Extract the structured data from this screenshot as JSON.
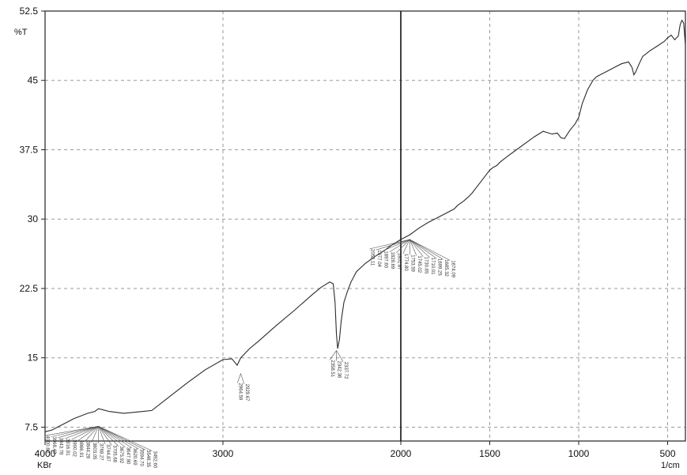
{
  "chart_data": {
    "type": "line",
    "ylabel": "%T",
    "xlabel": "1/cm",
    "x_corner_label": "KBr",
    "xlim": [
      4000,
      400
    ],
    "ylim": [
      6.0,
      52.5
    ],
    "x_reversed": true,
    "grid": true,
    "x_ticks": [
      4000,
      3000,
      2000,
      1500,
      1000,
      500
    ],
    "x_tick_labels": [
      "4000",
      "3000",
      "2000",
      "1500",
      "1000",
      "500"
    ],
    "y_ticks": [
      52.5,
      45,
      37.5,
      30,
      22.5,
      15,
      7.5
    ],
    "y_tick_labels": [
      "52.5",
      "45",
      "37.5",
      "30",
      "22.5",
      "15",
      "7.5"
    ],
    "cursor_x": 2000,
    "series": [
      {
        "x": [
          4000,
          3960,
          3920,
          3880,
          3840,
          3800,
          3760,
          3720,
          3700,
          3680,
          3640,
          3600,
          3560,
          3500,
          3450,
          3400,
          3300,
          3200,
          3100,
          3000,
          2950,
          2920,
          2900,
          2850,
          2800,
          2700,
          2600,
          2500,
          2450,
          2400,
          2380,
          2370,
          2362,
          2355,
          2345,
          2335,
          2320,
          2300,
          2280,
          2250,
          2200,
          2150,
          2100,
          2050,
          2000,
          1950,
          1900,
          1850,
          1800,
          1750,
          1700,
          1680,
          1650,
          1620,
          1600,
          1580,
          1560,
          1540,
          1520,
          1500,
          1480,
          1460,
          1440,
          1400,
          1350,
          1300,
          1250,
          1200,
          1150,
          1120,
          1100,
          1080,
          1050,
          1020,
          1000,
          980,
          950,
          920,
          900,
          850,
          800,
          760,
          720,
          700,
          690,
          680,
          660,
          640,
          600,
          560,
          520,
          500,
          480,
          460,
          440,
          430,
          420,
          410,
          400
        ],
        "y": [
          7.0,
          7.2,
          7.6,
          8.0,
          8.4,
          8.7,
          9.0,
          9.2,
          9.5,
          9.4,
          9.2,
          9.1,
          9.0,
          9.1,
          9.2,
          9.3,
          10.8,
          12.3,
          13.7,
          14.8,
          14.9,
          14.2,
          15.0,
          16.0,
          16.8,
          18.5,
          20.1,
          21.8,
          22.6,
          23.2,
          23.0,
          21.0,
          17.5,
          16.0,
          17.0,
          19.0,
          21.0,
          22.2,
          23.2,
          24.3,
          25.2,
          25.9,
          26.5,
          27.2,
          27.8,
          28.3,
          29.0,
          29.6,
          30.1,
          30.6,
          31.1,
          31.5,
          31.9,
          32.4,
          32.8,
          33.3,
          33.8,
          34.3,
          34.8,
          35.3,
          35.6,
          35.8,
          36.2,
          36.8,
          37.5,
          38.2,
          38.9,
          39.5,
          39.2,
          39.3,
          38.8,
          38.7,
          39.6,
          40.3,
          41.0,
          42.5,
          44.0,
          45.0,
          45.4,
          45.9,
          46.4,
          46.8,
          47.0,
          46.4,
          45.6,
          45.9,
          46.8,
          47.6,
          48.2,
          48.7,
          49.2,
          49.6,
          49.9,
          49.4,
          49.8,
          51.0,
          51.5,
          51.2,
          48.8
        ]
      }
    ],
    "peak_label_groups": [
      {
        "anchor": [
          3700,
          7.6
        ],
        "labels": [
          "4000.69",
          "3968.43",
          "3943.78",
          "3916.91",
          "3900.02",
          "3866.91",
          "3844.28",
          "3803.05",
          "3768.27",
          "3744.87",
          "3705.68",
          "3675.92",
          "3647.80",
          "3620.69",
          "3594.70",
          "3548.35",
          "3492.60"
        ]
      },
      {
        "anchor": [
          2900,
          13.3
        ],
        "labels": [
          "2964.59",
          "2929.67"
        ]
      },
      {
        "anchor": [
          2362,
          15.8
        ],
        "labels": [
          "2358.51",
          "2342.36",
          "2337.72"
        ]
      },
      {
        "anchor": [
          1950,
          27.8
        ],
        "labels": [
          "2052.11",
          "1977.04",
          "1897.60",
          "1828.69",
          "1801.87",
          "1774.80",
          "1753.59",
          "1745.02",
          "1730.65",
          "1710.01",
          "1699.25",
          "1685.32",
          "1674.09"
        ]
      }
    ]
  }
}
